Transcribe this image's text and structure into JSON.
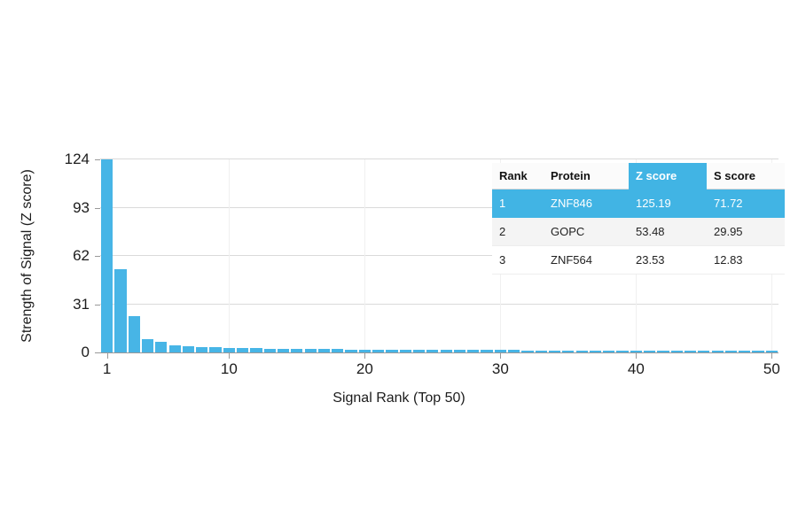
{
  "chart_data": {
    "type": "bar",
    "x": [
      1,
      2,
      3,
      4,
      5,
      6,
      7,
      8,
      9,
      10,
      11,
      12,
      13,
      14,
      15,
      16,
      17,
      18,
      19,
      20,
      21,
      22,
      23,
      24,
      25,
      26,
      27,
      28,
      29,
      30,
      31,
      32,
      33,
      34,
      35,
      36,
      37,
      38,
      39,
      40,
      41,
      42,
      43,
      44,
      45,
      46,
      47,
      48,
      49,
      50
    ],
    "values": [
      125.19,
      53.48,
      23.53,
      8.6,
      6.9,
      4.7,
      3.9,
      3.5,
      3.2,
      3.0,
      2.8,
      2.65,
      2.5,
      2.4,
      2.3,
      2.2,
      2.1,
      2.0,
      1.95,
      1.9,
      1.85,
      1.8,
      1.75,
      1.7,
      1.65,
      1.6,
      1.57,
      1.54,
      1.5,
      1.47,
      1.44,
      1.4,
      1.37,
      1.34,
      1.3,
      1.28,
      1.25,
      1.22,
      1.2,
      1.17,
      1.14,
      1.12,
      1.1,
      1.07,
      1.04,
      1.02,
      1.0,
      0.97,
      0.94,
      0.92
    ],
    "title": "",
    "xlabel": "Signal Rank (Top 50)",
    "ylabel": "Strength of Signal (Z score)",
    "xticks": [
      1,
      10,
      20,
      30,
      40,
      50
    ],
    "yticks": [
      0,
      31,
      62,
      93,
      124
    ],
    "ylim": [
      0,
      124
    ],
    "bar_color": "#47b5e6",
    "grid": "horizontal-light",
    "legend": "none"
  },
  "table": {
    "headers": [
      "Rank",
      "Protein",
      "Z score",
      "S score"
    ],
    "highlight_header_index": 2,
    "highlight_color": "#41b4e4",
    "rows": [
      [
        "1",
        "ZNF846",
        "125.19",
        "71.72"
      ],
      [
        "2",
        "GOPC",
        "53.48",
        "29.95"
      ],
      [
        "3",
        "ZNF564",
        "23.53",
        "12.83"
      ]
    ],
    "highlighted_row_index": 0
  }
}
